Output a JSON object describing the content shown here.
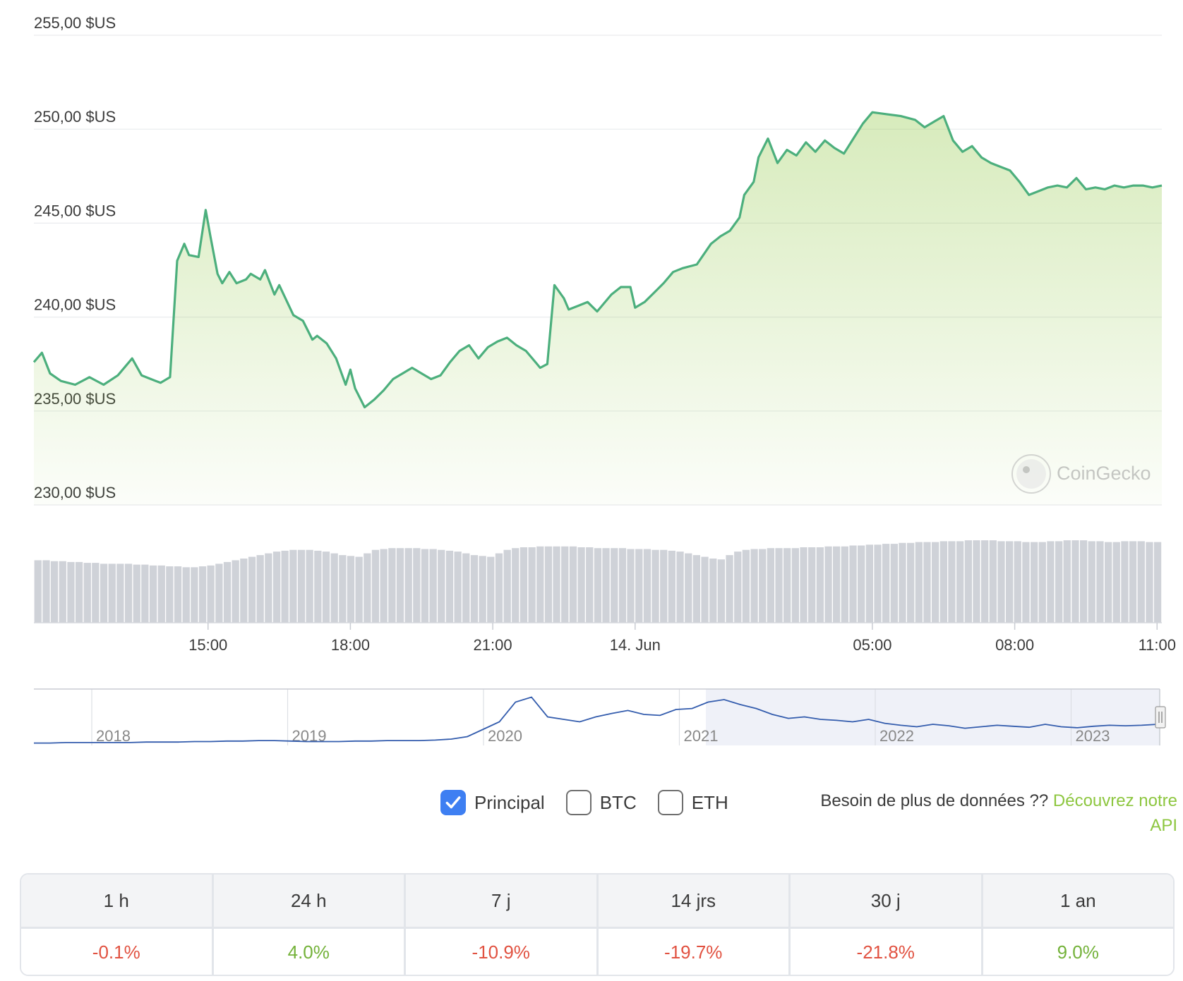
{
  "chart_data": {
    "type": "area",
    "y_ticks": [
      "255,00 $US",
      "250,00 $US",
      "245,00 $US",
      "240,00 $US",
      "235,00 $US",
      "230,00 $US"
    ],
    "y_tick_values": [
      255,
      250,
      245,
      240,
      235,
      230
    ],
    "ylim": [
      230,
      255
    ],
    "x_ticks": [
      "15:00",
      "18:00",
      "21:00",
      "14. Jun",
      "05:00",
      "08:00",
      "11:00"
    ],
    "x_tick_hours": [
      15,
      18,
      21,
      24,
      29,
      32,
      35
    ],
    "xlim_hours": [
      11.33,
      35.1
    ],
    "price_series": {
      "x_hours": [
        11.33,
        11.5,
        11.67,
        11.9,
        12.2,
        12.5,
        12.8,
        13.1,
        13.4,
        13.6,
        13.9,
        14.0,
        14.2,
        14.35,
        14.5,
        14.6,
        14.8,
        14.95,
        15.05,
        15.2,
        15.3,
        15.45,
        15.6,
        15.8,
        15.9,
        16.1,
        16.2,
        16.4,
        16.5,
        16.8,
        17.0,
        17.2,
        17.3,
        17.5,
        17.7,
        17.9,
        18.0,
        18.1,
        18.3,
        18.5,
        18.7,
        18.9,
        19.1,
        19.3,
        19.5,
        19.7,
        19.9,
        20.1,
        20.3,
        20.5,
        20.7,
        20.9,
        21.1,
        21.3,
        21.5,
        21.7,
        21.9,
        22.0,
        22.15,
        22.3,
        22.5,
        22.6,
        22.8,
        23.0,
        23.2,
        23.5,
        23.7,
        23.9,
        24.0,
        24.2,
        24.4,
        24.6,
        24.8,
        25.0,
        25.3,
        25.6,
        25.8,
        26.0,
        26.2,
        26.3,
        26.5,
        26.6,
        26.8,
        27.0,
        27.2,
        27.4,
        27.6,
        27.8,
        28.0,
        28.2,
        28.4,
        28.6,
        28.8,
        29.0,
        29.3,
        29.6,
        29.9,
        30.1,
        30.3,
        30.5,
        30.7,
        30.9,
        31.1,
        31.3,
        31.5,
        31.7,
        31.9,
        32.1,
        32.3,
        32.5,
        32.7,
        32.9,
        33.1,
        33.3,
        33.5,
        33.7,
        33.9,
        34.1,
        34.3,
        34.5,
        34.7,
        34.9,
        35.1
      ],
      "values": [
        237.6,
        238.1,
        237.0,
        236.6,
        236.4,
        236.8,
        236.4,
        236.9,
        237.8,
        236.9,
        236.6,
        236.5,
        236.8,
        243.0,
        243.9,
        243.3,
        243.2,
        245.7,
        244.3,
        242.3,
        241.8,
        242.4,
        241.8,
        242.0,
        242.3,
        242.0,
        242.5,
        241.2,
        241.7,
        240.1,
        239.8,
        238.8,
        239.0,
        238.6,
        237.8,
        236.4,
        237.2,
        236.2,
        235.2,
        235.6,
        236.1,
        236.7,
        237.0,
        237.3,
        237.0,
        236.7,
        236.9,
        237.6,
        238.2,
        238.5,
        237.8,
        238.4,
        238.7,
        238.9,
        238.5,
        238.2,
        237.6,
        237.3,
        237.5,
        241.7,
        241.0,
        240.4,
        240.6,
        240.8,
        240.3,
        241.2,
        241.6,
        241.6,
        240.5,
        240.8,
        241.3,
        241.8,
        242.4,
        242.6,
        242.8,
        243.9,
        244.3,
        244.6,
        245.3,
        246.5,
        247.2,
        248.5,
        249.5,
        248.2,
        248.9,
        248.6,
        249.3,
        248.8,
        249.4,
        249.0,
        248.7,
        249.5,
        250.3,
        250.9,
        250.8,
        250.7,
        250.5,
        250.1,
        250.4,
        250.7,
        249.4,
        248.8,
        249.1,
        248.5,
        248.2,
        248.0,
        247.8,
        247.2,
        246.5,
        246.7,
        246.9,
        247.0,
        246.9,
        247.4,
        246.8,
        246.9,
        246.8,
        247.0,
        246.9,
        247.0,
        247.0,
        246.9,
        247.0
      ],
      "line_color": "#4caf7d",
      "fill_color": "#8dc63f"
    },
    "volume": {
      "bar_color": "#cfd2d8",
      "relative_values": [
        0.72,
        0.72,
        0.71,
        0.71,
        0.7,
        0.7,
        0.69,
        0.69,
        0.68,
        0.68,
        0.68,
        0.68,
        0.67,
        0.67,
        0.66,
        0.66,
        0.65,
        0.65,
        0.64,
        0.64,
        0.65,
        0.66,
        0.68,
        0.7,
        0.72,
        0.74,
        0.76,
        0.78,
        0.8,
        0.82,
        0.83,
        0.84,
        0.84,
        0.84,
        0.83,
        0.82,
        0.8,
        0.78,
        0.77,
        0.76,
        0.8,
        0.84,
        0.85,
        0.86,
        0.86,
        0.86,
        0.86,
        0.85,
        0.85,
        0.84,
        0.83,
        0.82,
        0.8,
        0.78,
        0.77,
        0.76,
        0.8,
        0.84,
        0.86,
        0.87,
        0.87,
        0.88,
        0.88,
        0.88,
        0.88,
        0.88,
        0.87,
        0.87,
        0.86,
        0.86,
        0.86,
        0.86,
        0.85,
        0.85,
        0.85,
        0.84,
        0.84,
        0.83,
        0.82,
        0.8,
        0.78,
        0.76,
        0.74,
        0.73,
        0.78,
        0.82,
        0.84,
        0.85,
        0.85,
        0.86,
        0.86,
        0.86,
        0.86,
        0.87,
        0.87,
        0.87,
        0.88,
        0.88,
        0.88,
        0.89,
        0.89,
        0.9,
        0.9,
        0.91,
        0.91,
        0.92,
        0.92,
        0.93,
        0.93,
        0.93,
        0.94,
        0.94,
        0.94,
        0.95,
        0.95,
        0.95,
        0.95,
        0.94,
        0.94,
        0.94,
        0.93,
        0.93,
        0.93,
        0.94,
        0.94,
        0.95,
        0.95,
        0.95,
        0.94,
        0.94,
        0.93,
        0.93,
        0.94,
        0.94,
        0.94,
        0.93,
        0.93
      ]
    },
    "navigator": {
      "ticks": [
        "2018",
        "2019",
        "2020",
        "2021",
        "2022",
        "2023"
      ],
      "line_color": "#335cad",
      "mask_color": "#e8ebf5"
    },
    "watermark": "CoinGecko"
  },
  "toggles": [
    {
      "label": "Principal",
      "checked": true
    },
    {
      "label": "BTC",
      "checked": false
    },
    {
      "label": "ETH",
      "checked": false
    }
  ],
  "api_note": {
    "text": "Besoin de plus de données ?? ",
    "link": "Découvrez notre API"
  },
  "performance": {
    "periods": [
      "1 h",
      "24 h",
      "7 j",
      "14 jrs",
      "30 j",
      "1 an"
    ],
    "changes": [
      "-0.1%",
      "4.0%",
      "-10.9%",
      "-19.7%",
      "-21.8%",
      "9.0%"
    ],
    "signs": [
      "neg",
      "pos",
      "neg",
      "neg",
      "neg",
      "pos"
    ]
  }
}
